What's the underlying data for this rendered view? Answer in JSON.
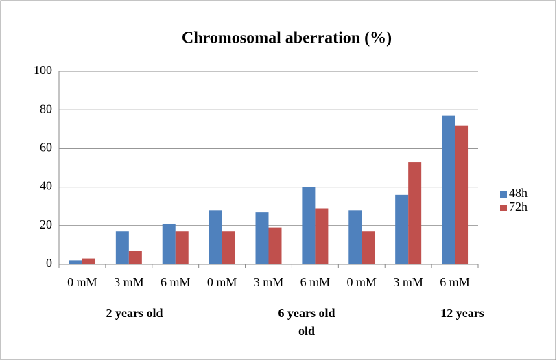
{
  "chart_data": {
    "type": "bar",
    "title": "Chromosomal aberration (%)",
    "categories": [
      "0 mM",
      "3 mM",
      "6 mM",
      "0 mM",
      "3 mM",
      "6 mM",
      "0 mM",
      "3 mM",
      "6 mM"
    ],
    "group_labels": [
      [
        "2 years old"
      ],
      [
        "6 years old",
        "old"
      ],
      [
        "12 years"
      ]
    ],
    "series": [
      {
        "name": "48h",
        "color": "#4f81bd",
        "values": [
          2,
          17,
          21,
          28,
          27,
          40,
          28,
          36,
          77
        ]
      },
      {
        "name": "72h",
        "color": "#c0504d",
        "values": [
          3,
          7,
          17,
          17,
          19,
          29,
          17,
          53,
          72
        ]
      }
    ],
    "ylim": [
      0,
      100
    ],
    "yticks": [
      0,
      20,
      40,
      60,
      80,
      100
    ],
    "grid": true,
    "legend": "right"
  }
}
